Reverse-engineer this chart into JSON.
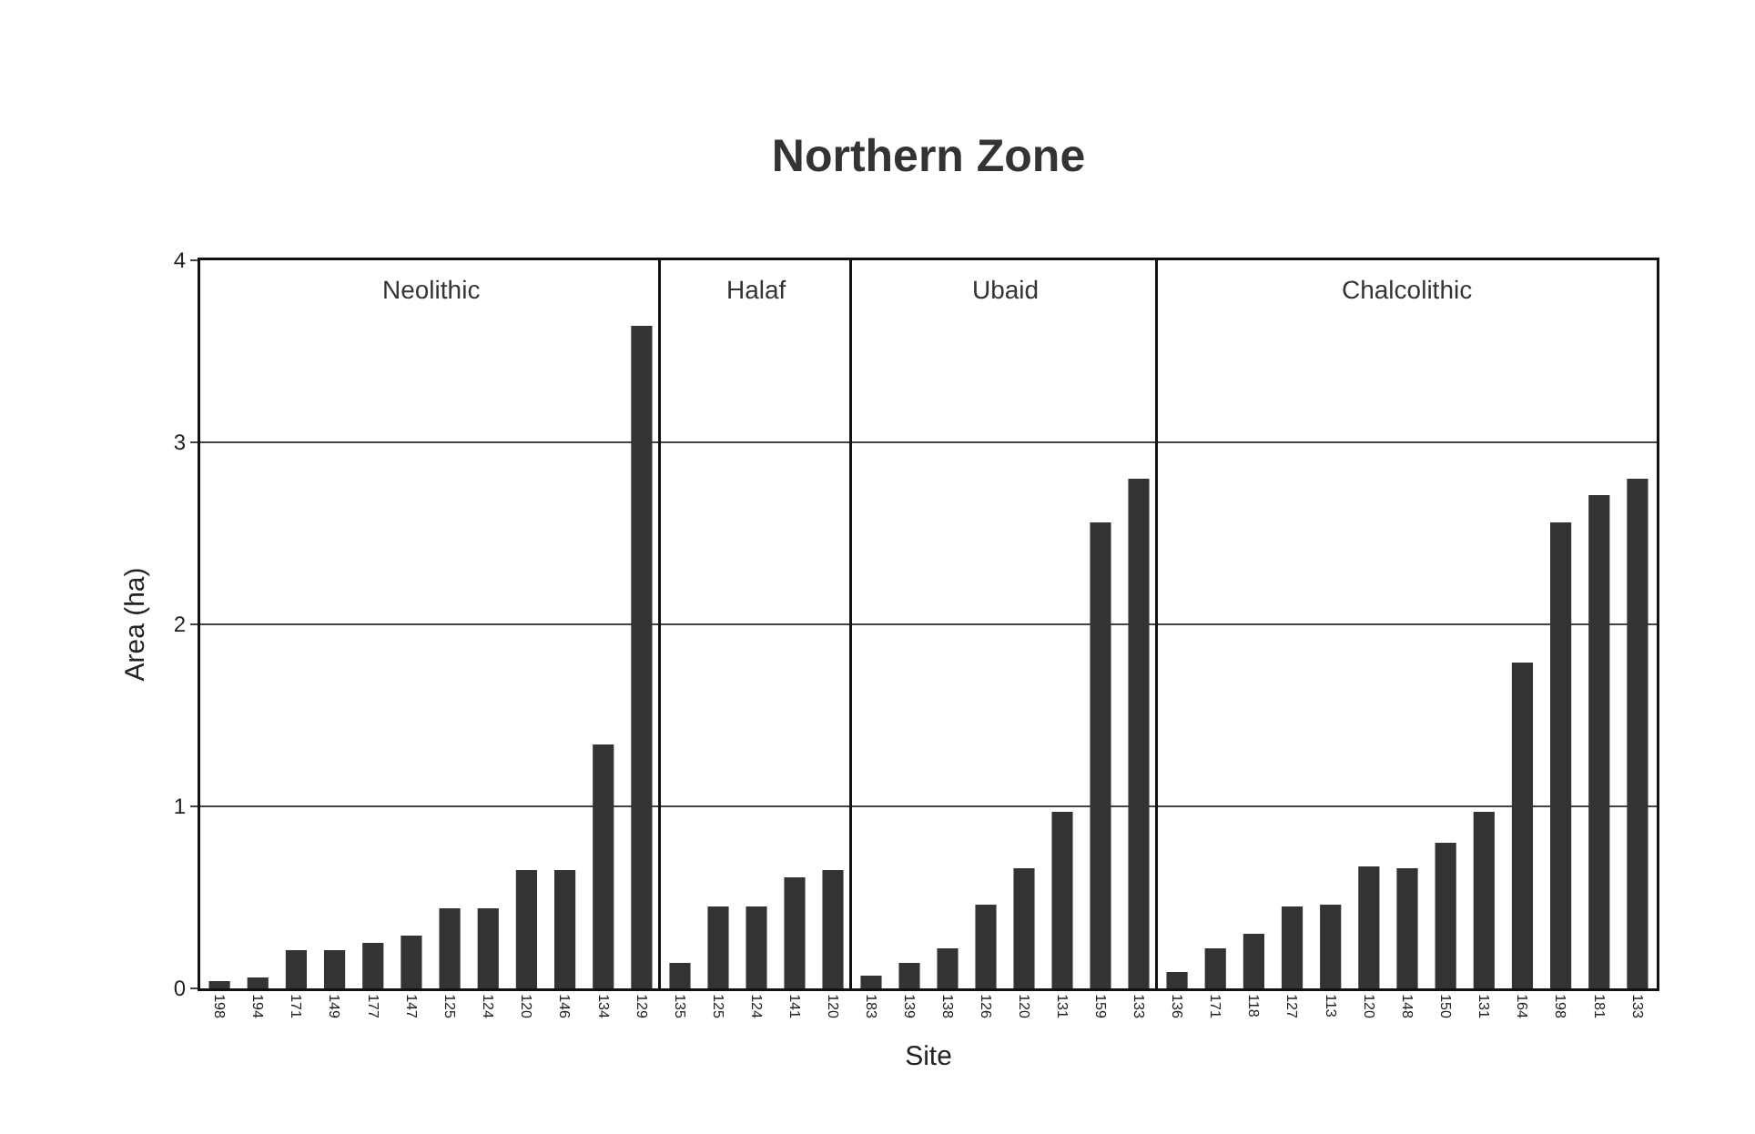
{
  "chart_data": [
    {
      "type": "bar",
      "ylabel": "Area (ha)",
      "annotations": [
        "Neolithic"
      ],
      "categories": [
        "198",
        "194",
        "171",
        "149",
        "177",
        "147",
        "125",
        "124",
        "120",
        "146",
        "134",
        "129"
      ],
      "values": [
        0.04,
        0.06,
        0.21,
        0.21,
        0.25,
        0.29,
        0.44,
        0.44,
        0.65,
        0.65,
        1.34,
        3.64
      ],
      "color": "#333333",
      "ylim": [
        0,
        4
      ],
      "yticks": [
        0,
        1,
        2,
        3,
        4
      ],
      "grid": "y"
    },
    {
      "type": "bar",
      "annotations": [
        "Halaf"
      ],
      "categories": [
        "135",
        "125",
        "124",
        "141",
        "120"
      ],
      "values": [
        0.14,
        0.45,
        0.45,
        0.61,
        0.65
      ],
      "color": "#333333",
      "ylim": [
        0,
        4
      ],
      "yticks": [
        0,
        1,
        2,
        3,
        4
      ],
      "grid": "y",
      "tick_labels": "x"
    },
    {
      "type": "bar",
      "title": "Northern Zone",
      "xlabel": "Site",
      "annotations": [
        "Ubaid"
      ],
      "categories": [
        "183",
        "139",
        "138",
        "126",
        "120",
        "131",
        "159",
        "133"
      ],
      "values": [
        0.07,
        0.14,
        0.22,
        0.46,
        0.66,
        0.97,
        2.56,
        2.8
      ],
      "color": "#333333",
      "ylim": [
        0,
        4
      ],
      "yticks": [
        0,
        1,
        2,
        3,
        4
      ],
      "grid": "y",
      "tick_labels": "x"
    },
    {
      "type": "bar",
      "annotations": [
        "Chalcolithic"
      ],
      "categories": [
        "136",
        "171",
        "118",
        "127",
        "113",
        "120",
        "148",
        "150",
        "131",
        "164",
        "198",
        "181",
        "133"
      ],
      "values": [
        0.09,
        0.22,
        0.3,
        0.45,
        0.46,
        0.67,
        0.66,
        0.8,
        0.97,
        1.79,
        2.56,
        2.71,
        2.8
      ],
      "color": "#333333",
      "ylim": [
        0,
        4
      ],
      "yticks": [
        0,
        1,
        2,
        3,
        4
      ],
      "grid": "y",
      "tick_labels": "x"
    }
  ]
}
